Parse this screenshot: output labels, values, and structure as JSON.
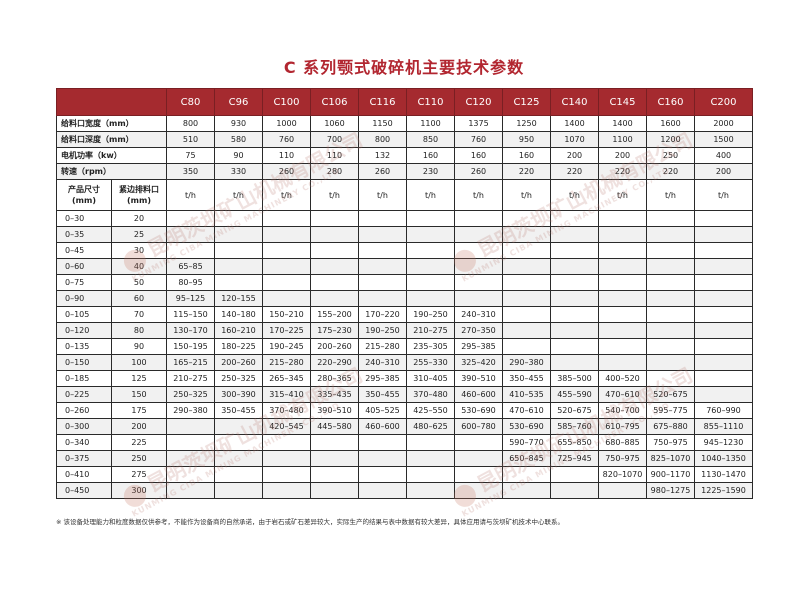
{
  "title": "C 系列颚式破碎机主要技术参数",
  "models": [
    "C80",
    "C96",
    "C100",
    "C106",
    "C116",
    "C110",
    "C120",
    "C125",
    "C140",
    "C145",
    "C160",
    "C200"
  ],
  "params": [
    {
      "label": "给料口宽度（mm）",
      "values": [
        "800",
        "930",
        "1000",
        "1060",
        "1150",
        "1100",
        "1375",
        "1250",
        "1400",
        "1400",
        "1600",
        "2000"
      ]
    },
    {
      "label": "给料口深度（mm）",
      "values": [
        "510",
        "580",
        "760",
        "700",
        "800",
        "850",
        "760",
        "950",
        "1070",
        "1100",
        "1200",
        "1500"
      ]
    },
    {
      "label": "电机功率（kw）",
      "values": [
        "75",
        "90",
        "110",
        "110",
        "132",
        "160",
        "160",
        "160",
        "200",
        "200",
        "250",
        "400"
      ]
    },
    {
      "label": "转速（rpm）",
      "values": [
        "350",
        "330",
        "260",
        "280",
        "260",
        "230",
        "260",
        "220",
        "220",
        "220",
        "220",
        "200"
      ]
    }
  ],
  "unit_row": {
    "size_label": "产品尺寸\n(mm)",
    "gap_label": "紧边排料口\n(mm)",
    "unit": "t/h"
  },
  "rows": [
    {
      "size": "0–30",
      "gap": "20",
      "values": [
        "",
        "",
        "",
        "",
        "",
        "",
        "",
        "",
        "",
        "",
        "",
        ""
      ]
    },
    {
      "size": "0–35",
      "gap": "25",
      "values": [
        "",
        "",
        "",
        "",
        "",
        "",
        "",
        "",
        "",
        "",
        "",
        ""
      ]
    },
    {
      "size": "0–45",
      "gap": "30",
      "values": [
        "",
        "",
        "",
        "",
        "",
        "",
        "",
        "",
        "",
        "",
        "",
        ""
      ]
    },
    {
      "size": "0–60",
      "gap": "40",
      "values": [
        "65–85",
        "",
        "",
        "",
        "",
        "",
        "",
        "",
        "",
        "",
        "",
        ""
      ]
    },
    {
      "size": "0–75",
      "gap": "50",
      "values": [
        "80–95",
        "",
        "",
        "",
        "",
        "",
        "",
        "",
        "",
        "",
        "",
        ""
      ]
    },
    {
      "size": "0–90",
      "gap": "60",
      "values": [
        "95–125",
        "120–155",
        "",
        "",
        "",
        "",
        "",
        "",
        "",
        "",
        "",
        ""
      ]
    },
    {
      "size": "0–105",
      "gap": "70",
      "values": [
        "115–150",
        "140–180",
        "150–210",
        "155–200",
        "170–220",
        "190–250",
        "240–310",
        "",
        "",
        "",
        "",
        ""
      ]
    },
    {
      "size": "0–120",
      "gap": "80",
      "values": [
        "130–170",
        "160–210",
        "170–225",
        "175–230",
        "190–250",
        "210–275",
        "270–350",
        "",
        "",
        "",
        "",
        ""
      ]
    },
    {
      "size": "0–135",
      "gap": "90",
      "values": [
        "150–195",
        "180–225",
        "190–245",
        "200–260",
        "215–280",
        "235–305",
        "295–385",
        "",
        "",
        "",
        "",
        ""
      ]
    },
    {
      "size": "0–150",
      "gap": "100",
      "values": [
        "165–215",
        "200–260",
        "215–280",
        "220–290",
        "240–310",
        "255–330",
        "325–420",
        "290–380",
        "",
        "",
        "",
        ""
      ]
    },
    {
      "size": "0–185",
      "gap": "125",
      "values": [
        "210–275",
        "250–325",
        "265–345",
        "280–365",
        "295–385",
        "310–405",
        "390–510",
        "350–455",
        "385–500",
        "400–520",
        "",
        ""
      ]
    },
    {
      "size": "0–225",
      "gap": "150",
      "values": [
        "250–325",
        "300–390",
        "315–410",
        "335–435",
        "350–455",
        "370–480",
        "460–600",
        "410–535",
        "455–590",
        "470–610",
        "520–675",
        ""
      ]
    },
    {
      "size": "0–260",
      "gap": "175",
      "values": [
        "290–380",
        "350–455",
        "370–480",
        "390–510",
        "405–525",
        "425–550",
        "530–690",
        "470–610",
        "520–675",
        "540–700",
        "595–775",
        "760–990"
      ]
    },
    {
      "size": "0–300",
      "gap": "200",
      "values": [
        "",
        "",
        "420–545",
        "445–580",
        "460–600",
        "480–625",
        "600–780",
        "530–690",
        "585–760",
        "610–795",
        "675–880",
        "855–1110"
      ]
    },
    {
      "size": "0–340",
      "gap": "225",
      "values": [
        "",
        "",
        "",
        "",
        "",
        "",
        "",
        "590–770",
        "655–850",
        "680–885",
        "750–975",
        "945–1230"
      ]
    },
    {
      "size": "0–375",
      "gap": "250",
      "values": [
        "",
        "",
        "",
        "",
        "",
        "",
        "",
        "650–845",
        "725–945",
        "750–975",
        "825–1070",
        "1040–1350"
      ]
    },
    {
      "size": "0–410",
      "gap": "275",
      "values": [
        "",
        "",
        "",
        "",
        "",
        "",
        "",
        "",
        "",
        "820–1070",
        "900–1170",
        "1130–1470"
      ]
    },
    {
      "size": "0–450",
      "gap": "300",
      "values": [
        "",
        "",
        "",
        "",
        "",
        "",
        "",
        "",
        "",
        "",
        "980–1275",
        "1225–1590"
      ]
    }
  ],
  "note": "※ 该设备处理能力和粒度数据仅供参考，不能作为设备商的自然承诺，由于岩石或矿石差异较大，实际生产的结果与表中数据有较大差异，具体应用请与茨坝矿机技术中心联系。",
  "watermark": {
    "text": "昆明茨坝矿山机械有限公司",
    "sub": "KUNMING CIBA MINING MACHINERY CO.,LTD"
  }
}
